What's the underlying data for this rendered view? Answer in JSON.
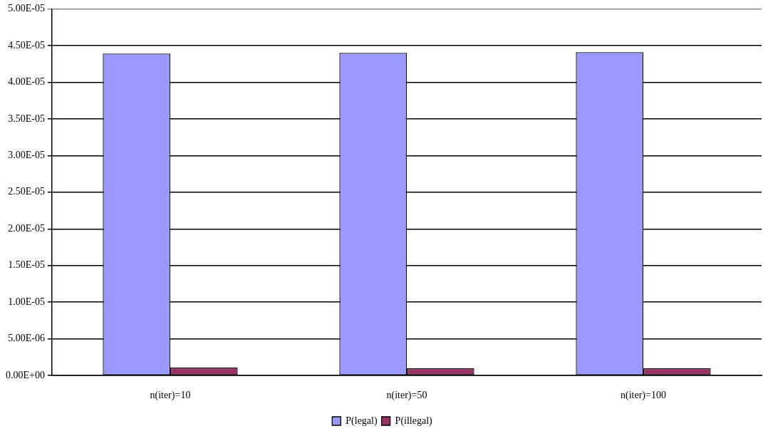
{
  "chart_data": {
    "type": "bar",
    "categories": [
      "n(iter)=10",
      "n(iter)=50",
      "n(iter)=100"
    ],
    "series": [
      {
        "name": "P(legal)",
        "color": "#9999ff",
        "values": [
          4.39e-05,
          4.4e-05,
          4.41e-05
        ]
      },
      {
        "name": "P(illegal)",
        "color": "#993366",
        "values": [
          1.1e-06,
          1e-06,
          1e-06
        ]
      }
    ],
    "ylim": [
      0,
      5e-05
    ],
    "yticks": [
      {
        "value": 0,
        "label": "0.00E+00"
      },
      {
        "value": 5e-06,
        "label": "5.00E-06"
      },
      {
        "value": 1e-05,
        "label": "1.00E-05"
      },
      {
        "value": 1.5e-05,
        "label": "1.50E-05"
      },
      {
        "value": 2e-05,
        "label": "2.00E-05"
      },
      {
        "value": 2.5e-05,
        "label": "2.50E-05"
      },
      {
        "value": 3e-05,
        "label": "3.00E-05"
      },
      {
        "value": 3.5e-05,
        "label": "3.50E-05"
      },
      {
        "value": 4e-05,
        "label": "4.00E-05"
      },
      {
        "value": 4.5e-05,
        "label": "4.50E-05"
      },
      {
        "value": 5e-05,
        "label": "5.00E-05"
      }
    ],
    "grid": "y",
    "legend": "bottom"
  }
}
